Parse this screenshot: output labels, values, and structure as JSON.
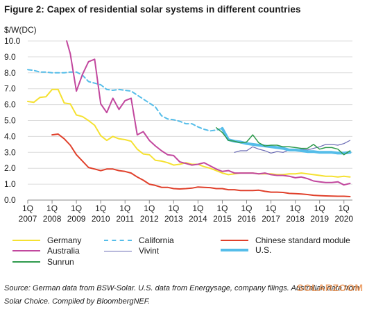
{
  "figure": {
    "title": "Figure 2: Capex of residential solar systems in different countries",
    "source": "Source: German data from BSW-Solar. U.S. data from Energysage, company filings. Australian data from Solar Choice. Compiled by BloombergNEF.",
    "watermark": "SOLARZOOM"
  },
  "chart_data": {
    "type": "line",
    "ylabel": "$/W(DC)",
    "xlabel": "",
    "ylim": [
      0,
      10
    ],
    "yticks": [
      "0.0",
      "1.0",
      "2.0",
      "3.0",
      "4.0",
      "5.0",
      "6.0",
      "7.0",
      "8.0",
      "9.0",
      "10.0"
    ],
    "xlim": [
      2007,
      2020.35
    ],
    "xticks": [
      {
        "q": "1Q",
        "year": "2007",
        "x": 2007
      },
      {
        "q": "1Q",
        "year": "2008",
        "x": 2008
      },
      {
        "q": "1Q",
        "year": "2009",
        "x": 2009
      },
      {
        "q": "1Q",
        "year": "2010",
        "x": 2010
      },
      {
        "q": "1Q",
        "year": "2011",
        "x": 2011
      },
      {
        "q": "1Q",
        "year": "2012",
        "x": 2012
      },
      {
        "q": "1Q",
        "year": "2013",
        "x": 2013
      },
      {
        "q": "1Q",
        "year": "2014",
        "x": 2014
      },
      {
        "q": "1Q",
        "year": "2015",
        "x": 2015
      },
      {
        "q": "1Q",
        "year": "2016",
        "x": 2016
      },
      {
        "q": "1Q",
        "year": "2017",
        "x": 2017
      },
      {
        "q": "1Q",
        "year": "2018",
        "x": 2018
      },
      {
        "q": "1Q",
        "year": "2019",
        "x": 2019
      },
      {
        "q": "1Q",
        "year": "2020",
        "x": 2020
      }
    ],
    "grid": "horizontal",
    "legend_position": "bottom",
    "series": [
      {
        "name": "Germany",
        "color": "#f5e131",
        "dash": "",
        "width": 2,
        "x": [
          2007,
          2007.25,
          2007.5,
          2007.75,
          2008,
          2008.25,
          2008.5,
          2008.75,
          2009,
          2009.25,
          2009.5,
          2009.75,
          2010,
          2010.25,
          2010.5,
          2010.75,
          2011,
          2011.25,
          2011.5,
          2011.75,
          2012,
          2012.25,
          2012.5,
          2012.75,
          2013,
          2013.25,
          2013.5,
          2013.75,
          2014,
          2014.25,
          2014.5,
          2014.75,
          2015,
          2015.25,
          2015.5,
          2015.75,
          2016,
          2016.25,
          2016.5,
          2016.75,
          2017,
          2017.25,
          2017.5,
          2017.75,
          2018,
          2018.25,
          2018.5,
          2018.75,
          2019,
          2019.25,
          2019.5,
          2019.75,
          2020,
          2020.25
        ],
        "y": [
          6.2,
          6.15,
          6.45,
          6.5,
          6.95,
          6.95,
          6.1,
          6.05,
          5.35,
          5.25,
          5.0,
          4.7,
          4.05,
          3.75,
          4.0,
          3.85,
          3.8,
          3.7,
          3.2,
          2.9,
          2.85,
          2.5,
          2.45,
          2.35,
          2.2,
          2.25,
          2.35,
          2.25,
          2.25,
          2.1,
          2.0,
          1.85,
          1.7,
          1.6,
          1.65,
          1.7,
          1.7,
          1.7,
          1.65,
          1.65,
          1.65,
          1.6,
          1.6,
          1.65,
          1.65,
          1.7,
          1.65,
          1.6,
          1.55,
          1.5,
          1.5,
          1.45,
          1.5,
          1.45
        ]
      },
      {
        "name": "California",
        "color": "#55bde9",
        "dash": "6,4",
        "width": 2,
        "x": [
          2007,
          2007.25,
          2007.5,
          2007.75,
          2008,
          2008.25,
          2008.5,
          2008.75,
          2009,
          2009.25,
          2009.5,
          2009.75,
          2010,
          2010.25,
          2010.5,
          2010.75,
          2011,
          2011.25,
          2011.5,
          2011.75,
          2012,
          2012.25,
          2012.5,
          2012.75,
          2013,
          2013.25,
          2013.5,
          2013.75,
          2014,
          2014.25,
          2014.5,
          2014.75,
          2015
        ],
        "y": [
          8.2,
          8.15,
          8.05,
          8.05,
          8.0,
          8.0,
          8.0,
          8.05,
          8.05,
          7.85,
          7.45,
          7.35,
          7.25,
          6.95,
          6.9,
          6.95,
          6.9,
          6.85,
          6.6,
          6.35,
          6.1,
          5.85,
          5.3,
          5.1,
          5.05,
          4.95,
          4.8,
          4.8,
          4.6,
          4.45,
          4.35,
          4.4,
          4.5
        ]
      },
      {
        "name": "Chinese standard module",
        "color": "#e0402b",
        "dash": "",
        "width": 2,
        "x": [
          2008,
          2008.25,
          2008.5,
          2008.75,
          2009,
          2009.25,
          2009.5,
          2009.75,
          2010,
          2010.25,
          2010.5,
          2010.75,
          2011,
          2011.25,
          2011.5,
          2011.75,
          2012,
          2012.25,
          2012.5,
          2012.75,
          2013,
          2013.25,
          2013.5,
          2013.75,
          2014,
          2014.25,
          2014.5,
          2014.75,
          2015,
          2015.25,
          2015.5,
          2015.75,
          2016,
          2016.25,
          2016.5,
          2016.75,
          2017,
          2017.25,
          2017.5,
          2017.75,
          2018,
          2018.25,
          2018.5,
          2018.75,
          2019,
          2019.25,
          2019.5,
          2019.75,
          2020,
          2020.25
        ],
        "y": [
          4.1,
          4.15,
          3.85,
          3.45,
          2.85,
          2.45,
          2.05,
          1.95,
          1.85,
          1.95,
          1.95,
          1.85,
          1.8,
          1.7,
          1.45,
          1.25,
          1.0,
          0.92,
          0.8,
          0.8,
          0.72,
          0.7,
          0.72,
          0.75,
          0.82,
          0.8,
          0.78,
          0.72,
          0.72,
          0.65,
          0.65,
          0.6,
          0.6,
          0.6,
          0.62,
          0.55,
          0.5,
          0.5,
          0.48,
          0.42,
          0.4,
          0.38,
          0.35,
          0.3,
          0.28,
          0.26,
          0.25,
          0.24,
          0.24,
          0.22
        ]
      },
      {
        "name": "Australia",
        "color": "#c2489e",
        "dash": "",
        "width": 2,
        "x": [
          2008.6,
          2008.75,
          2009,
          2009.25,
          2009.5,
          2009.75,
          2010,
          2010.25,
          2010.5,
          2010.75,
          2011,
          2011.25,
          2011.5,
          2011.75,
          2012,
          2012.25,
          2012.5,
          2012.75,
          2013,
          2013.25,
          2013.5,
          2013.75,
          2014,
          2014.25,
          2014.5,
          2014.75,
          2015,
          2015.25,
          2015.5,
          2015.75,
          2016,
          2016.25,
          2016.5,
          2016.75,
          2017,
          2017.25,
          2017.5,
          2017.75,
          2018,
          2018.25,
          2018.5,
          2018.75,
          2019,
          2019.25,
          2019.5,
          2019.75,
          2020,
          2020.25
        ],
        "y": [
          10.0,
          9.2,
          6.85,
          7.9,
          8.7,
          8.85,
          6.05,
          5.5,
          6.4,
          5.7,
          6.25,
          6.4,
          4.1,
          4.3,
          3.75,
          3.4,
          3.1,
          2.85,
          2.8,
          2.4,
          2.3,
          2.2,
          2.25,
          2.35,
          2.15,
          1.95,
          1.8,
          1.85,
          1.7,
          1.7,
          1.7,
          1.7,
          1.65,
          1.7,
          1.6,
          1.55,
          1.55,
          1.5,
          1.4,
          1.45,
          1.35,
          1.2,
          1.15,
          1.1,
          1.1,
          1.15,
          0.95,
          1.05
        ]
      },
      {
        "name": "Vivint",
        "color": "#6a6bb5",
        "dash": "",
        "width": 1.2,
        "x": [
          2015.5,
          2015.75,
          2016,
          2016.25,
          2016.5,
          2016.75,
          2017,
          2017.25,
          2017.5,
          2017.75,
          2018,
          2018.25,
          2018.5,
          2018.75,
          2019,
          2019.25,
          2019.5,
          2019.75,
          2020,
          2020.25
        ],
        "y": [
          3.0,
          3.1,
          3.1,
          3.35,
          3.2,
          3.1,
          2.95,
          3.05,
          3.0,
          3.15,
          3.15,
          3.2,
          3.15,
          3.25,
          3.35,
          3.5,
          3.5,
          3.45,
          3.55,
          3.75
        ]
      },
      {
        "name": "U.S.",
        "color": "#55bde9",
        "dash": "",
        "width": 4,
        "x": [
          2015,
          2015.25,
          2015.5,
          2015.75,
          2016,
          2016.25,
          2016.5,
          2016.75,
          2017,
          2017.25,
          2017.5,
          2017.75,
          2018,
          2018.25,
          2018.5,
          2018.75,
          2019,
          2019.25,
          2019.5,
          2019.75,
          2020,
          2020.25
        ],
        "y": [
          4.5,
          3.8,
          3.7,
          3.65,
          3.55,
          3.5,
          3.45,
          3.4,
          3.35,
          3.3,
          3.25,
          3.15,
          3.15,
          3.1,
          3.05,
          3.05,
          3.0,
          3.0,
          3.0,
          2.95,
          2.95,
          3.0
        ]
      },
      {
        "name": "Sunrun",
        "color": "#2e9a4c",
        "dash": "",
        "width": 1.5,
        "x": [
          2014.75,
          2015,
          2015.25,
          2015.5,
          2015.75,
          2016,
          2016.25,
          2016.5,
          2016.75,
          2017,
          2017.25,
          2017.5,
          2017.75,
          2018,
          2018.25,
          2018.5,
          2018.75,
          2019,
          2019.25,
          2019.5,
          2019.75,
          2020,
          2020.25
        ],
        "y": [
          4.55,
          4.25,
          3.75,
          3.7,
          3.6,
          3.65,
          4.1,
          3.6,
          3.4,
          3.45,
          3.45,
          3.35,
          3.35,
          3.3,
          3.25,
          3.25,
          3.5,
          3.2,
          3.3,
          3.3,
          3.2,
          2.85,
          3.1
        ]
      }
    ]
  }
}
